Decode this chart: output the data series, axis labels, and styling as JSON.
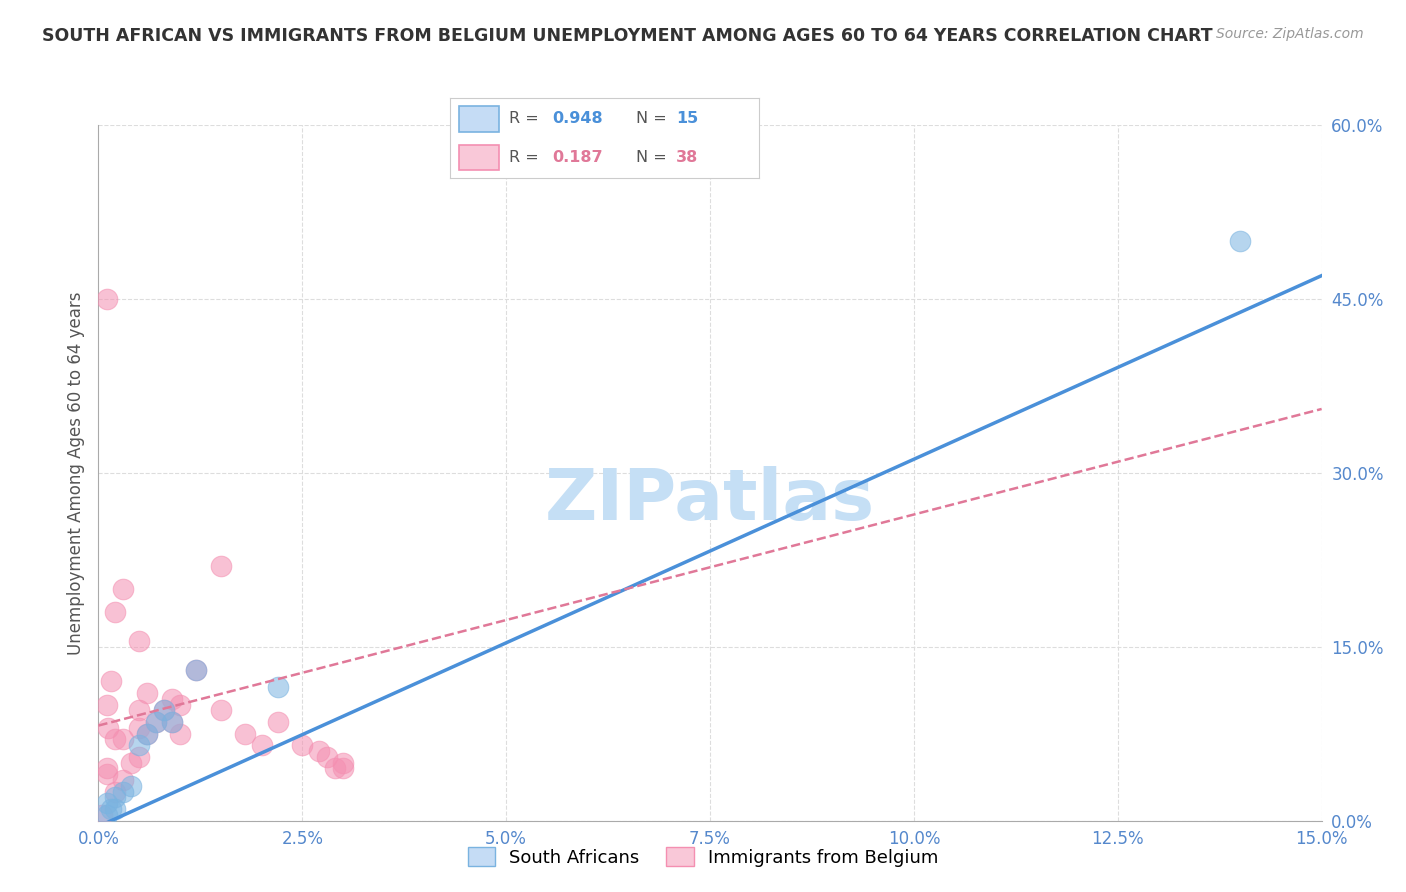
{
  "title": "SOUTH AFRICAN VS IMMIGRANTS FROM BELGIUM UNEMPLOYMENT AMONG AGES 60 TO 64 YEARS CORRELATION CHART",
  "source": "Source: ZipAtlas.com",
  "ylabel_label": "Unemployment Among Ages 60 to 64 years",
  "sa_color": "#7ab3e0",
  "bel_color": "#f48fb1",
  "sa_line_color": "#4a90d9",
  "bel_line_color": "#e07898",
  "xlim": [
    0.0,
    0.15
  ],
  "ylim": [
    0.0,
    0.6
  ],
  "x_ticks": [
    0.0,
    0.025,
    0.05,
    0.075,
    0.1,
    0.125,
    0.15
  ],
  "x_tick_labels": [
    "0.0%",
    "2.5%",
    "5.0%",
    "7.5%",
    "10.0%",
    "12.5%",
    "15.0%"
  ],
  "y_ticks": [
    0.0,
    0.15,
    0.3,
    0.45,
    0.6
  ],
  "y_tick_labels": [
    "0.0%",
    "15.0%",
    "30.0%",
    "45.0%",
    "60.0%"
  ],
  "background_color": "#ffffff",
  "grid_color": "#dddddd",
  "tick_color": "#5588cc",
  "sa_R": 0.948,
  "sa_N": 15,
  "bel_R": 0.187,
  "bel_N": 38,
  "sa_scatter_x": [
    0.001,
    0.001,
    0.0015,
    0.002,
    0.002,
    0.003,
    0.004,
    0.005,
    0.006,
    0.007,
    0.008,
    0.009,
    0.012,
    0.022,
    0.14
  ],
  "sa_scatter_y": [
    0.005,
    0.015,
    0.01,
    0.02,
    0.01,
    0.025,
    0.03,
    0.065,
    0.075,
    0.085,
    0.095,
    0.085,
    0.13,
    0.115,
    0.5
  ],
  "bel_scatter_x": [
    0.0005,
    0.001,
    0.001,
    0.001,
    0.0012,
    0.0015,
    0.002,
    0.002,
    0.003,
    0.003,
    0.004,
    0.005,
    0.005,
    0.005,
    0.006,
    0.006,
    0.007,
    0.008,
    0.009,
    0.009,
    0.01,
    0.01,
    0.012,
    0.015,
    0.015,
    0.018,
    0.02,
    0.022,
    0.025,
    0.027,
    0.028,
    0.029,
    0.03,
    0.03,
    0.001,
    0.002,
    0.003,
    0.005
  ],
  "bel_scatter_y": [
    0.005,
    0.04,
    0.045,
    0.1,
    0.08,
    0.12,
    0.07,
    0.025,
    0.035,
    0.07,
    0.05,
    0.055,
    0.08,
    0.095,
    0.075,
    0.11,
    0.085,
    0.095,
    0.085,
    0.105,
    0.075,
    0.1,
    0.13,
    0.095,
    0.22,
    0.075,
    0.065,
    0.085,
    0.065,
    0.06,
    0.055,
    0.045,
    0.045,
    0.05,
    0.45,
    0.18,
    0.2,
    0.155
  ],
  "sa_line_x0": 0.0,
  "sa_line_y0": -0.005,
  "sa_line_x1": 0.15,
  "sa_line_y1": 0.47,
  "bel_line_x0": 0.0,
  "bel_line_y0": 0.082,
  "bel_line_x1": 0.15,
  "bel_line_y1": 0.355,
  "watermark_text": "ZIPatlas",
  "watermark_color": "#c5dff5",
  "legend_R_label_color": "#555555",
  "legend_sa_value_color": "#4a90d9",
  "legend_bel_value_color": "#e07898"
}
